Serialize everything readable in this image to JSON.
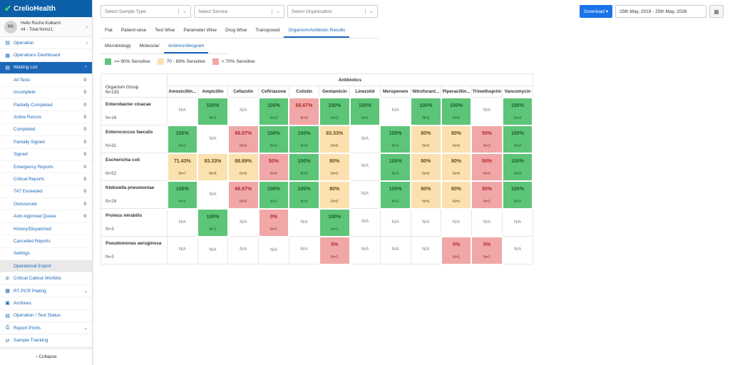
{
  "brand": "CrelioHealth",
  "user": {
    "initials": "RK",
    "greeting": "Hello Rucha Kulkarni",
    "info": "#4 - Total Nzmz1"
  },
  "nav_top": [
    {
      "icon": "operation-icon",
      "glyph": "▤",
      "label": "Operation",
      "chev": "›"
    },
    {
      "icon": "dashboard-icon",
      "glyph": "▦",
      "label": "Operations Dashboard",
      "chev": ""
    }
  ],
  "waiting_list": {
    "glyph": "▤",
    "label": "Waiting List",
    "chev": "⌃"
  },
  "sub_items": [
    {
      "label": "All Tests",
      "count": "0"
    },
    {
      "label": "Incomplete",
      "count": "0"
    },
    {
      "label": "Partially Completed",
      "count": "0"
    },
    {
      "label": "Active Reruns",
      "count": "0"
    },
    {
      "label": "Completed",
      "count": "0"
    },
    {
      "label": "Partially Signed",
      "count": "0"
    },
    {
      "label": "Signed",
      "count": "0"
    },
    {
      "label": "Emergency Reports",
      "count": "0"
    },
    {
      "label": "Critical Reports",
      "count": "0"
    },
    {
      "label": "TAT Exceeded",
      "count": "0"
    },
    {
      "label": "Outsourced",
      "count": "0"
    },
    {
      "label": "Auto Approval Queue",
      "count": "0"
    },
    {
      "label": "History/Dispatched",
      "count": ""
    },
    {
      "label": "Cancelled Reports",
      "count": ""
    },
    {
      "label": "Settings",
      "count": ""
    },
    {
      "label": "Operational Export",
      "count": ""
    }
  ],
  "nav_bottom": [
    {
      "icon": "phone-icon",
      "glyph": "✆",
      "label": "Critical Callout Worklist",
      "chev": ""
    },
    {
      "icon": "plate-icon",
      "glyph": "▦",
      "label": "RT-PCR Plating",
      "chev": "⌄"
    },
    {
      "icon": "archive-icon",
      "glyph": "▣",
      "label": "Archives",
      "chev": ""
    },
    {
      "icon": "status-icon",
      "glyph": "▤",
      "label": "Operation / Test Status",
      "chev": ""
    },
    {
      "icon": "print-icon",
      "glyph": "⎙",
      "label": "Report Prints",
      "chev": "⌄"
    },
    {
      "icon": "tracking-icon",
      "glyph": "⇄",
      "label": "Sample Tracking",
      "chev": ""
    }
  ],
  "collapse_label": "‹  Collapse",
  "filters": [
    {
      "placeholder": "Select Sample Type"
    },
    {
      "placeholder": "Select Service"
    },
    {
      "placeholder": "Select Organisation"
    }
  ],
  "download_label": "Download ▾",
  "date_range": "25th May, 2019 - 25th May, 2026",
  "tabs": [
    "Flat",
    "Patient-wise",
    "Test Wise",
    "Parameter Wise",
    "Drug Wise",
    "Transposed",
    "Organism/Antibiotic Results"
  ],
  "active_tab": 6,
  "subtabs": [
    "Microbiology",
    "Molecular",
    "Antimicrobiogram"
  ],
  "active_subtab": 2,
  "legend": [
    {
      "label": ">= 90% Sensitive",
      "color": "#5cc577"
    },
    {
      "label": "70 - 89% Sensitive",
      "color": "#fbe1b0"
    },
    {
      "label": "< 70% Sensitive",
      "color": "#f1a7a7"
    }
  ],
  "table": {
    "group_title": "Antibiotics",
    "org_header": "Organism Group",
    "org_total": "N=133",
    "columns": [
      "Amoxicillin...",
      "Ampicillin",
      "Cefazolin",
      "Ceftriaxone",
      "Colistin",
      "Gentamicin",
      "Linezolid",
      "Meropenem",
      "Nitrofurant...",
      "Piperacillin...",
      "Trimethoprim",
      "Vancomycin"
    ],
    "rows": [
      {
        "organism": "Enterobacter cloacae",
        "n": "N=16",
        "cells": [
          {
            "t": "na"
          },
          {
            "t": "g",
            "v": "100%",
            "c": "N=1"
          },
          {
            "t": "na"
          },
          {
            "t": "g",
            "v": "100%",
            "c": "N=3"
          },
          {
            "t": "r",
            "v": "66.67%",
            "c": "N=3"
          },
          {
            "t": "g",
            "v": "100%",
            "c": "N=3"
          },
          {
            "t": "g",
            "v": "100%",
            "c": "N=1"
          },
          {
            "t": "na"
          },
          {
            "t": "g",
            "v": "100%",
            "c": "N=2"
          },
          {
            "t": "g",
            "v": "100%",
            "c": "N=2"
          },
          {
            "t": "na"
          },
          {
            "t": "g",
            "v": "100%",
            "c": "N=3"
          }
        ]
      },
      {
        "organism": "Enterococcus faecalis",
        "n": "N=31",
        "cells": [
          {
            "t": "g",
            "v": "100%",
            "c": "N=2"
          },
          {
            "t": "na"
          },
          {
            "t": "r",
            "v": "66.67%",
            "c": "N=3"
          },
          {
            "t": "g",
            "v": "100%",
            "c": "N=2"
          },
          {
            "t": "g",
            "v": "100%",
            "c": "N=2"
          },
          {
            "t": "y",
            "v": "83.33%",
            "c": "N=6"
          },
          {
            "t": "na"
          },
          {
            "t": "g",
            "v": "100%",
            "c": "N=1"
          },
          {
            "t": "y",
            "v": "80%",
            "c": "N=5"
          },
          {
            "t": "y",
            "v": "80%",
            "c": "N=5"
          },
          {
            "t": "r",
            "v": "50%",
            "c": "N=2"
          },
          {
            "t": "g",
            "v": "100%",
            "c": "N=2"
          }
        ]
      },
      {
        "organism": "Escherichia coli",
        "n": "N=52",
        "cells": [
          {
            "t": "y",
            "v": "71.43%",
            "c": "N=7"
          },
          {
            "t": "y",
            "v": "83.33%",
            "c": "N=6"
          },
          {
            "t": "y",
            "v": "88.89%",
            "c": "N=9"
          },
          {
            "t": "r",
            "v": "50%",
            "c": "N=6"
          },
          {
            "t": "g",
            "v": "100%",
            "c": "N=2"
          },
          {
            "t": "y",
            "v": "80%",
            "c": "N=5"
          },
          {
            "t": "na"
          },
          {
            "t": "g",
            "v": "100%",
            "c": "N=1"
          },
          {
            "t": "y",
            "v": "80%",
            "c": "N=5"
          },
          {
            "t": "y",
            "v": "80%",
            "c": "N=5"
          },
          {
            "t": "r",
            "v": "50%",
            "c": "N=2"
          },
          {
            "t": "g",
            "v": "100%",
            "c": "N=2"
          }
        ]
      },
      {
        "organism": "Klebsiella pneumoniae",
        "n": "N=28",
        "cells": [
          {
            "t": "g",
            "v": "100%",
            "c": "N=1"
          },
          {
            "t": "na"
          },
          {
            "t": "r",
            "v": "66.67%",
            "c": "N=3"
          },
          {
            "t": "g",
            "v": "100%",
            "c": "N=2"
          },
          {
            "t": "g",
            "v": "100%",
            "c": "N=2"
          },
          {
            "t": "y",
            "v": "80%",
            "c": "N=5"
          },
          {
            "t": "na"
          },
          {
            "t": "g",
            "v": "100%",
            "c": "N=1"
          },
          {
            "t": "y",
            "v": "80%",
            "c": "N=5"
          },
          {
            "t": "y",
            "v": "80%",
            "c": "N=5"
          },
          {
            "t": "r",
            "v": "50%",
            "c": "N=2"
          },
          {
            "t": "g",
            "v": "100%",
            "c": "N=2"
          }
        ]
      },
      {
        "organism": "Proteus mirabilis",
        "n": "N=3",
        "cells": [
          {
            "t": "na"
          },
          {
            "t": "g",
            "v": "100%",
            "c": "N=1"
          },
          {
            "t": "na"
          },
          {
            "t": "r",
            "v": "0%",
            "c": "N=1"
          },
          {
            "t": "na"
          },
          {
            "t": "g",
            "v": "100%",
            "c": "N=1"
          },
          {
            "t": "na"
          },
          {
            "t": "na"
          },
          {
            "t": "na"
          },
          {
            "t": "na"
          },
          {
            "t": "na"
          },
          {
            "t": "na"
          }
        ]
      },
      {
        "organism": "Pseudomonas aeruginosa",
        "n": "N=3",
        "cells": [
          {
            "t": "na"
          },
          {
            "t": "na"
          },
          {
            "t": "na"
          },
          {
            "t": "na"
          },
          {
            "t": "na"
          },
          {
            "t": "r",
            "v": "0%",
            "c": "N=1"
          },
          {
            "t": "na"
          },
          {
            "t": "na"
          },
          {
            "t": "na"
          },
          {
            "t": "r",
            "v": "0%",
            "c": "N=1"
          },
          {
            "t": "r",
            "v": "0%",
            "c": "N=1"
          },
          {
            "t": "na"
          }
        ]
      }
    ],
    "na_label": "N/A"
  }
}
